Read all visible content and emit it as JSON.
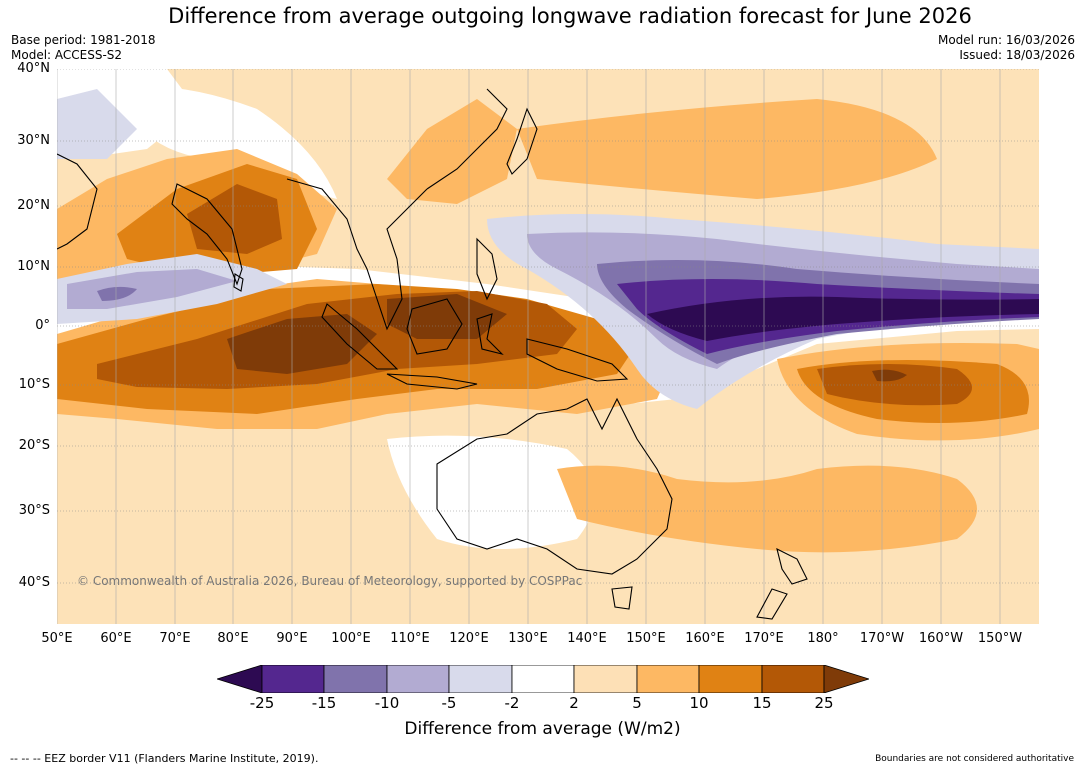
{
  "title": "Difference from average outgoing longwave radiation forecast for June 2026",
  "base_period": "Base period: 1981-2018",
  "model": "Model: ACCESS-S2",
  "model_run": "Model run: 16/03/2026",
  "issued": "Issued: 18/03/2026",
  "copyright": "© Commonwealth of Australia 2026, Bureau of Meteorology, supported by COSPPac",
  "lat_labels": [
    "40°N",
    "30°N",
    "20°N",
    "10°N",
    "0°",
    "10°S",
    "20°S",
    "30°S",
    "40°S"
  ],
  "lon_labels": [
    "50°E",
    "60°E",
    "70°E",
    "80°E",
    "90°E",
    "100°E",
    "110°E",
    "120°E",
    "130°E",
    "140°E",
    "150°E",
    "160°E",
    "170°E",
    "180°",
    "170°W",
    "160°W",
    "150°W"
  ],
  "colorbar": {
    "title": "Difference from average (W/m2)",
    "ticks": [
      "-25",
      "-15",
      "-10",
      "-5",
      "-2",
      "2",
      "5",
      "10",
      "15",
      "25"
    ],
    "colors": [
      "#2d0a52",
      "#54278f",
      "#8073ac",
      "#b2abd2",
      "#d8daeb",
      "#ffffff",
      "#fde0b6",
      "#fdb863",
      "#e08214",
      "#b35806",
      "#7f3b08"
    ]
  },
  "eez_legend": "-- -- -- EEZ border V11 (Flanders Marine Institute, 2019).",
  "disclaimer": "Boundaries are not considered authoritative"
}
